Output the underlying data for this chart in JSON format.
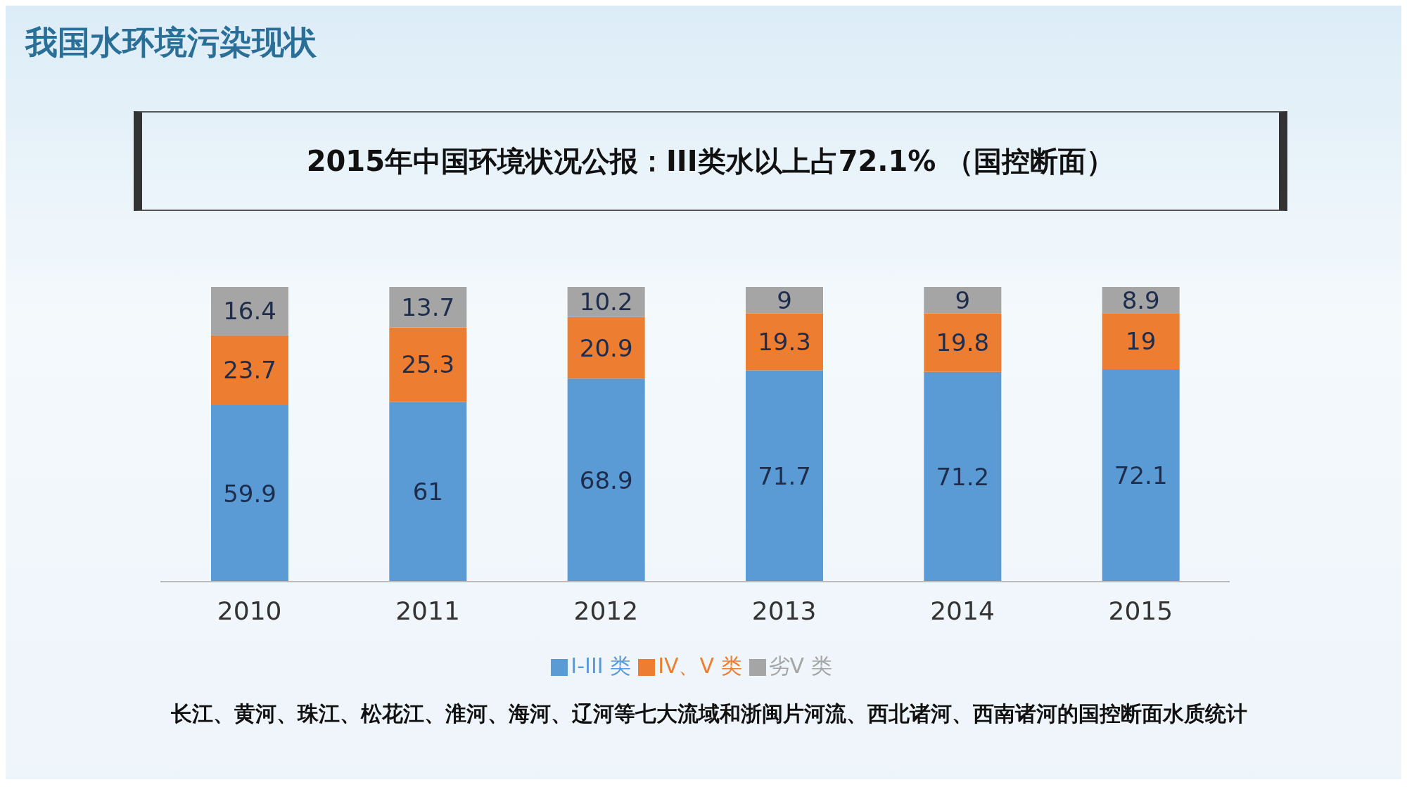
{
  "chart_data": {
    "type": "bar",
    "title": "我国水环境污染现状",
    "subtitle": "2015年中国环境状况公报：III类水以上占72.1% （国控断面）",
    "categories": [
      "2010",
      "2011",
      "2012",
      "2013",
      "2014",
      "2015"
    ],
    "series": [
      {
        "name": "I-III 类",
        "color": "#5b9bd5",
        "values": [
          59.9,
          61,
          68.9,
          71.7,
          71.2,
          72.1
        ]
      },
      {
        "name": "IV、V 类",
        "color": "#ed7d31",
        "values": [
          23.7,
          25.3,
          20.9,
          19.3,
          19.8,
          19
        ]
      },
      {
        "name": "劣V 类",
        "color": "#a5a5a5",
        "values": [
          16.4,
          13.7,
          10.2,
          9,
          9,
          8.9
        ]
      }
    ],
    "stacked": true,
    "data_labels": true,
    "legend": "bottom",
    "annotations": [
      "长江、黄河、珠江、松花江、淮河、海河、辽河等七大流域和浙闽片河流、西北诸河、西南诸河的国控断面水质统计"
    ]
  }
}
